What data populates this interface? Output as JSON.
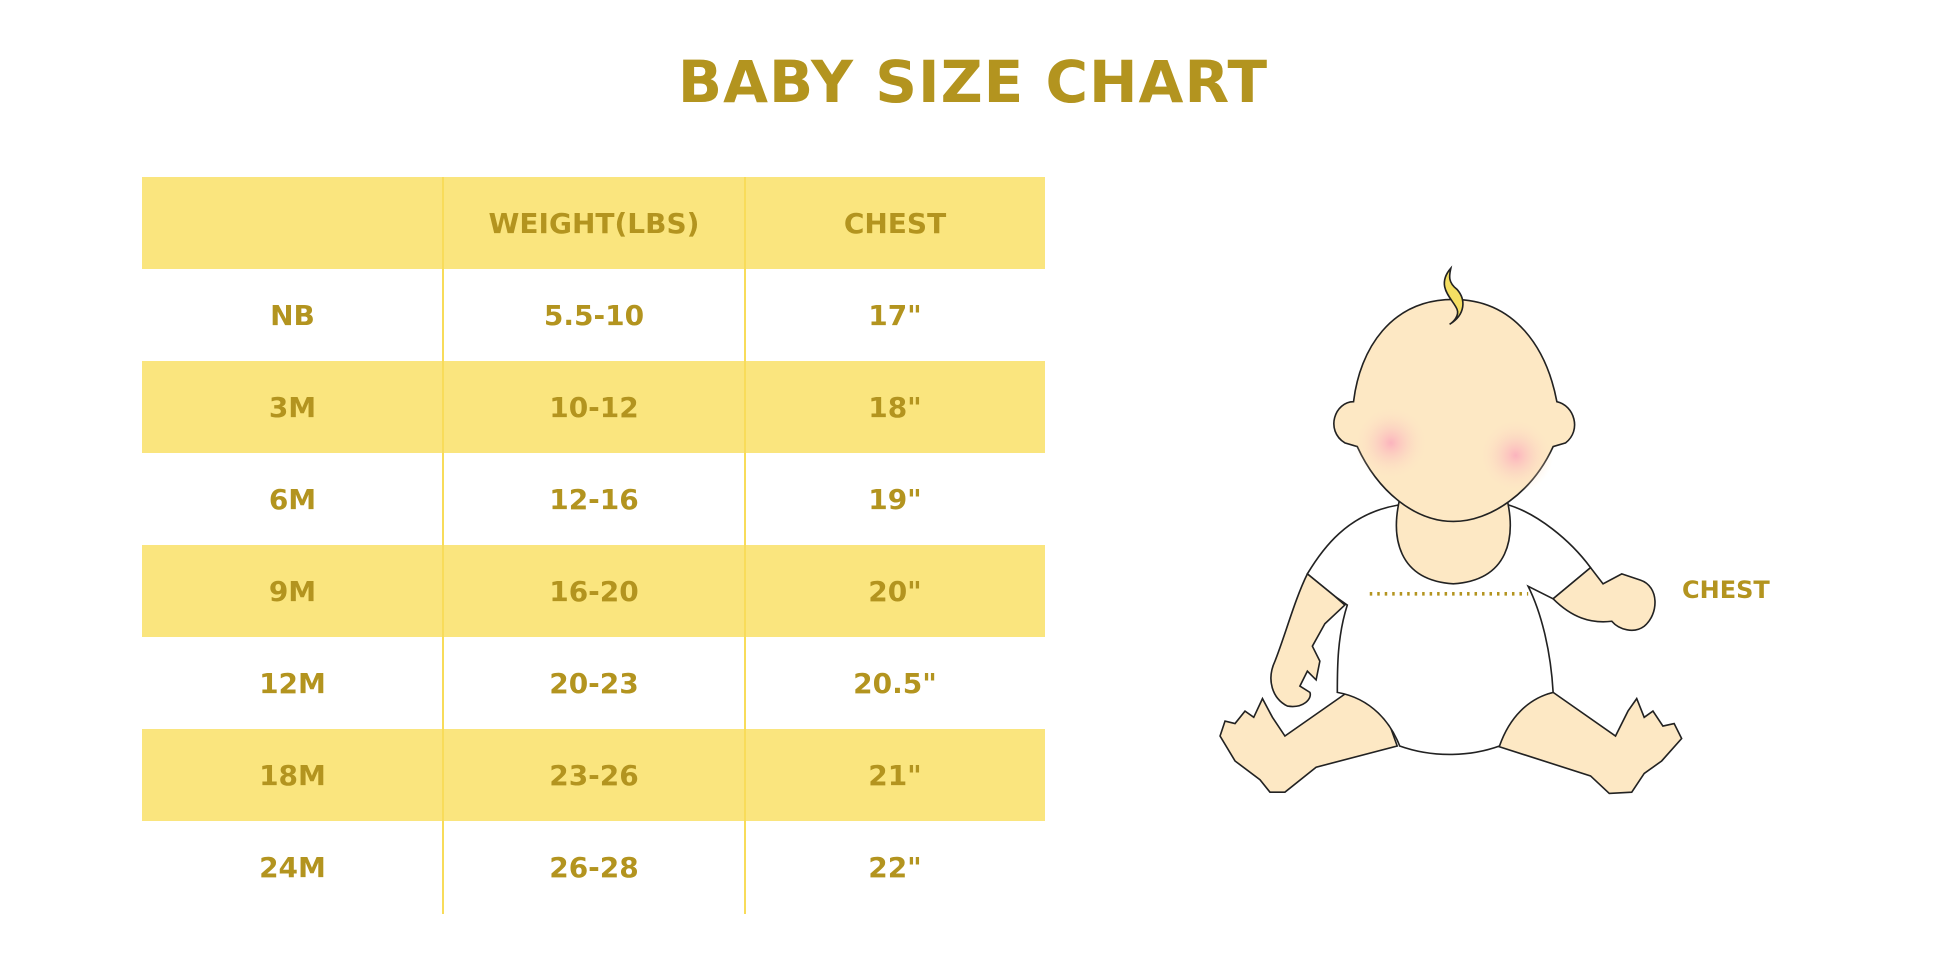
{
  "title": "BABY SIZE CHART",
  "table": {
    "headers": [
      "",
      "WEIGHT(LBS)",
      "CHEST"
    ],
    "rows": [
      [
        "NB",
        "5.5-10",
        "17\""
      ],
      [
        "3M",
        "10-12",
        "18\""
      ],
      [
        "6M",
        "12-16",
        "19\""
      ],
      [
        "9M",
        "16-20",
        "20\""
      ],
      [
        "12M",
        "20-23",
        "20.5\""
      ],
      [
        "18M",
        "23-26",
        "21\""
      ],
      [
        "24M",
        "26-28",
        "22\""
      ]
    ]
  },
  "illustration": {
    "chest_label": "CHEST"
  },
  "colors": {
    "text": "#b3941f",
    "band": "#fae57e",
    "skin": "#fde8c4"
  }
}
